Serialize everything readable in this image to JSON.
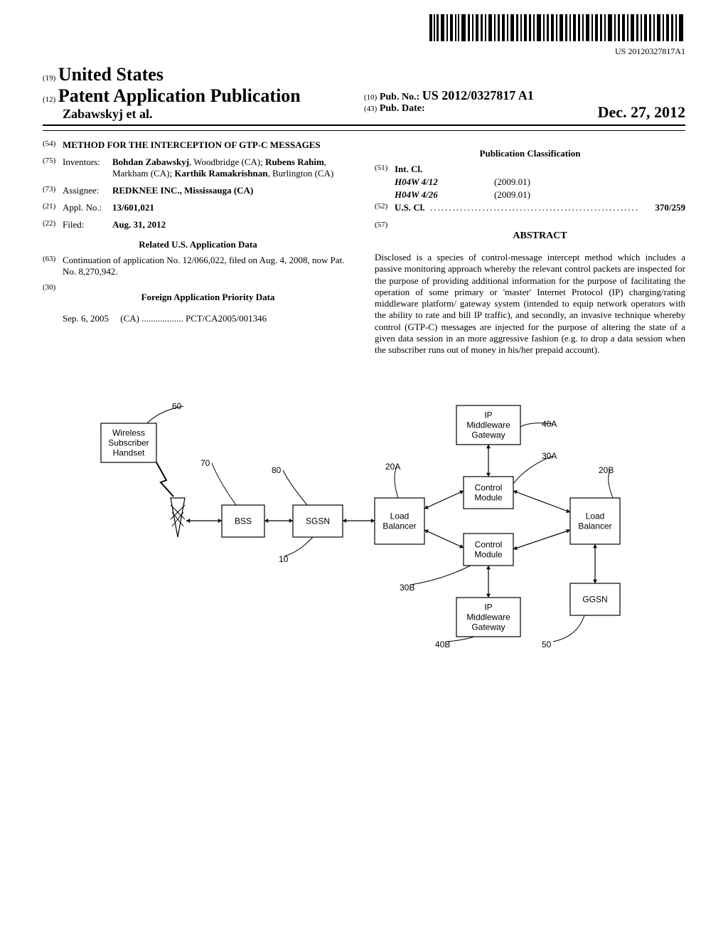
{
  "barcode_text": "US 20120327817A1",
  "header": {
    "country_num": "(19)",
    "country": "United States",
    "pub_num": "(12)",
    "pub_title": "Patent Application Publication",
    "authors": "Zabawskyj et al.",
    "pubno_num": "(10)",
    "pubno_label": "Pub. No.:",
    "pubno_value": "US 2012/0327817 A1",
    "pubdate_num": "(43)",
    "pubdate_label": "Pub. Date:",
    "pubdate_value": "Dec. 27, 2012"
  },
  "left": {
    "title_num": "(54)",
    "title": "METHOD FOR THE INTERCEPTION OF GTP-C MESSAGES",
    "inventors_num": "(75)",
    "inventors_label": "Inventors:",
    "inventors_html": "<span class='inventor-name'>Bohdan Zabawskyj</span>, Woodbridge (CA); <span class='inventor-name'>Rubens Rahim</span>, Markham (CA); <span class='inventor-name'>Karthik Ramakrishnan</span>, Burlington (CA)",
    "assignee_num": "(73)",
    "assignee_label": "Assignee:",
    "assignee_value": "REDKNEE INC., Mississauga (CA)",
    "applno_num": "(21)",
    "applno_label": "Appl. No.:",
    "applno_value": "13/601,021",
    "filed_num": "(22)",
    "filed_label": "Filed:",
    "filed_value": "Aug. 31, 2012",
    "related_heading": "Related U.S. Application Data",
    "cont_num": "(63)",
    "cont_text": "Continuation of application No. 12/066,022, filed on Aug. 4, 2008, now Pat. No. 8,270,942.",
    "foreign_num": "(30)",
    "foreign_heading": "Foreign Application Priority Data",
    "foreign_date": "Sep. 6, 2005",
    "foreign_country": "(CA)",
    "foreign_value": "PCT/CA2005/001346"
  },
  "right": {
    "pubclass_heading": "Publication Classification",
    "intcl_num": "(51)",
    "intcl_label": "Int. Cl.",
    "intcl": [
      {
        "code": "H04W 4/12",
        "year": "(2009.01)"
      },
      {
        "code": "H04W 4/26",
        "year": "(2009.01)"
      }
    ],
    "uscl_num": "(52)",
    "uscl_label": "U.S. Cl.",
    "uscl_value": "370/259",
    "abstract_num": "(57)",
    "abstract_heading": "ABSTRACT",
    "abstract_text": "Disclosed is a species of control-message intercept method which includes a passive monitoring approach whereby the relevant control packets are inspected for the purpose of providing additional information for the purpose of facilitating the operation of some primary or 'master' Internet Protocol (IP) charging/rating middleware platform/ gateway system (intended to equip network operators with the ability to rate and bill IP traffic), and secondly, an invasive technique whereby control (GTP-C) messages are injected for the purpose of altering the state of a given data session in an more aggressive fashion (e.g. to drop a data session when the subscriber runs out of money in his/her prepaid account)."
  },
  "figure": {
    "nodes": {
      "handset": {
        "label": "Wireless\nSubscriber\nHandset",
        "ref": "60"
      },
      "bss": {
        "label": "BSS",
        "ref": "70"
      },
      "sgsn": {
        "label": "SGSN",
        "ref": "80"
      },
      "sgsn_down_ref": "10",
      "lb_a": {
        "label": "Load\nBalancer",
        "ref": "20A"
      },
      "cm_a": {
        "label": "Control\nModule",
        "ref": "30A"
      },
      "cm_b": {
        "label": "Control\nModule",
        "ref": "30B"
      },
      "gw_a": {
        "label": "IP\nMiddleware\nGateway",
        "ref": "40A"
      },
      "gw_b": {
        "label": "IP\nMiddleware\nGateway",
        "ref": "40B"
      },
      "lb_b": {
        "label": "Load\nBalancer",
        "ref": "20B"
      },
      "ggsn": {
        "label": "GGSN",
        "ref": "50"
      }
    },
    "colors": {
      "stroke": "#000000",
      "fill": "#ffffff",
      "text": "#000000"
    },
    "font_size": 12,
    "line_width": 1.2
  }
}
